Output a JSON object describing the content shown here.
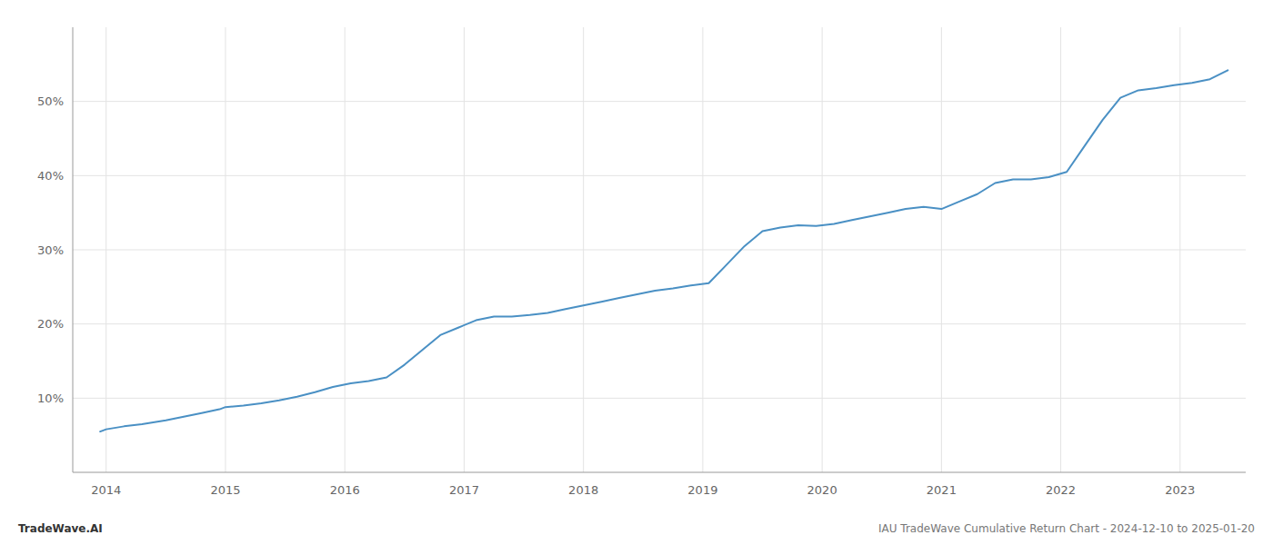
{
  "chart_data": {
    "type": "line",
    "x": [
      2013.95,
      2014.0,
      2014.15,
      2014.3,
      2014.5,
      2014.65,
      2014.8,
      2014.95,
      2015.0,
      2015.15,
      2015.3,
      2015.45,
      2015.6,
      2015.75,
      2015.9,
      2016.05,
      2016.2,
      2016.35,
      2016.5,
      2016.65,
      2016.8,
      2016.95,
      2017.1,
      2017.25,
      2017.4,
      2017.55,
      2017.7,
      2017.85,
      2018.0,
      2018.15,
      2018.3,
      2018.45,
      2018.6,
      2018.75,
      2018.9,
      2019.05,
      2019.2,
      2019.35,
      2019.5,
      2019.65,
      2019.8,
      2019.95,
      2020.1,
      2020.25,
      2020.4,
      2020.55,
      2020.7,
      2020.85,
      2021.0,
      2021.15,
      2021.3,
      2021.45,
      2021.6,
      2021.75,
      2021.9,
      2022.05,
      2022.2,
      2022.35,
      2022.5,
      2022.65,
      2022.8,
      2022.95,
      2023.1,
      2023.25,
      2023.4
    ],
    "series": [
      {
        "color": "#4a90c4",
        "values": [
          5.5,
          5.8,
          6.2,
          6.5,
          7.0,
          7.5,
          8.0,
          8.5,
          8.8,
          9.0,
          9.3,
          9.7,
          10.2,
          10.8,
          11.5,
          12.0,
          12.3,
          12.8,
          14.5,
          16.5,
          18.5,
          19.5,
          20.5,
          21.0,
          21.0,
          21.2,
          21.5,
          22.0,
          22.5,
          23.0,
          23.5,
          24.0,
          24.5,
          24.8,
          25.2,
          25.5,
          28.0,
          30.5,
          32.5,
          33.0,
          33.3,
          33.2,
          33.5,
          34.0,
          34.5,
          35.0,
          35.5,
          35.8,
          35.5,
          36.5,
          37.5,
          39.0,
          39.5,
          39.5,
          39.8,
          40.5,
          44.0,
          47.5,
          50.5,
          51.5,
          51.8,
          52.2,
          52.5,
          53.0,
          54.2
        ]
      }
    ],
    "xlim": [
      2013.72,
      2023.55
    ],
    "xticks": [
      2014,
      2015,
      2016,
      2017,
      2018,
      2019,
      2020,
      2021,
      2022,
      2023
    ],
    "ylim": [
      0,
      60
    ],
    "yticks": [
      {
        "value": 10,
        "label": "10%"
      },
      {
        "value": 20,
        "label": "20%"
      },
      {
        "value": 30,
        "label": "30%"
      },
      {
        "value": 40,
        "label": "40%"
      },
      {
        "value": 50,
        "label": "50%"
      }
    ],
    "grid": true,
    "annotations": [
      "TradeWave.AI",
      "IAU TradeWave Cumulative Return Chart - 2024-12-10 to 2025-01-20"
    ]
  }
}
